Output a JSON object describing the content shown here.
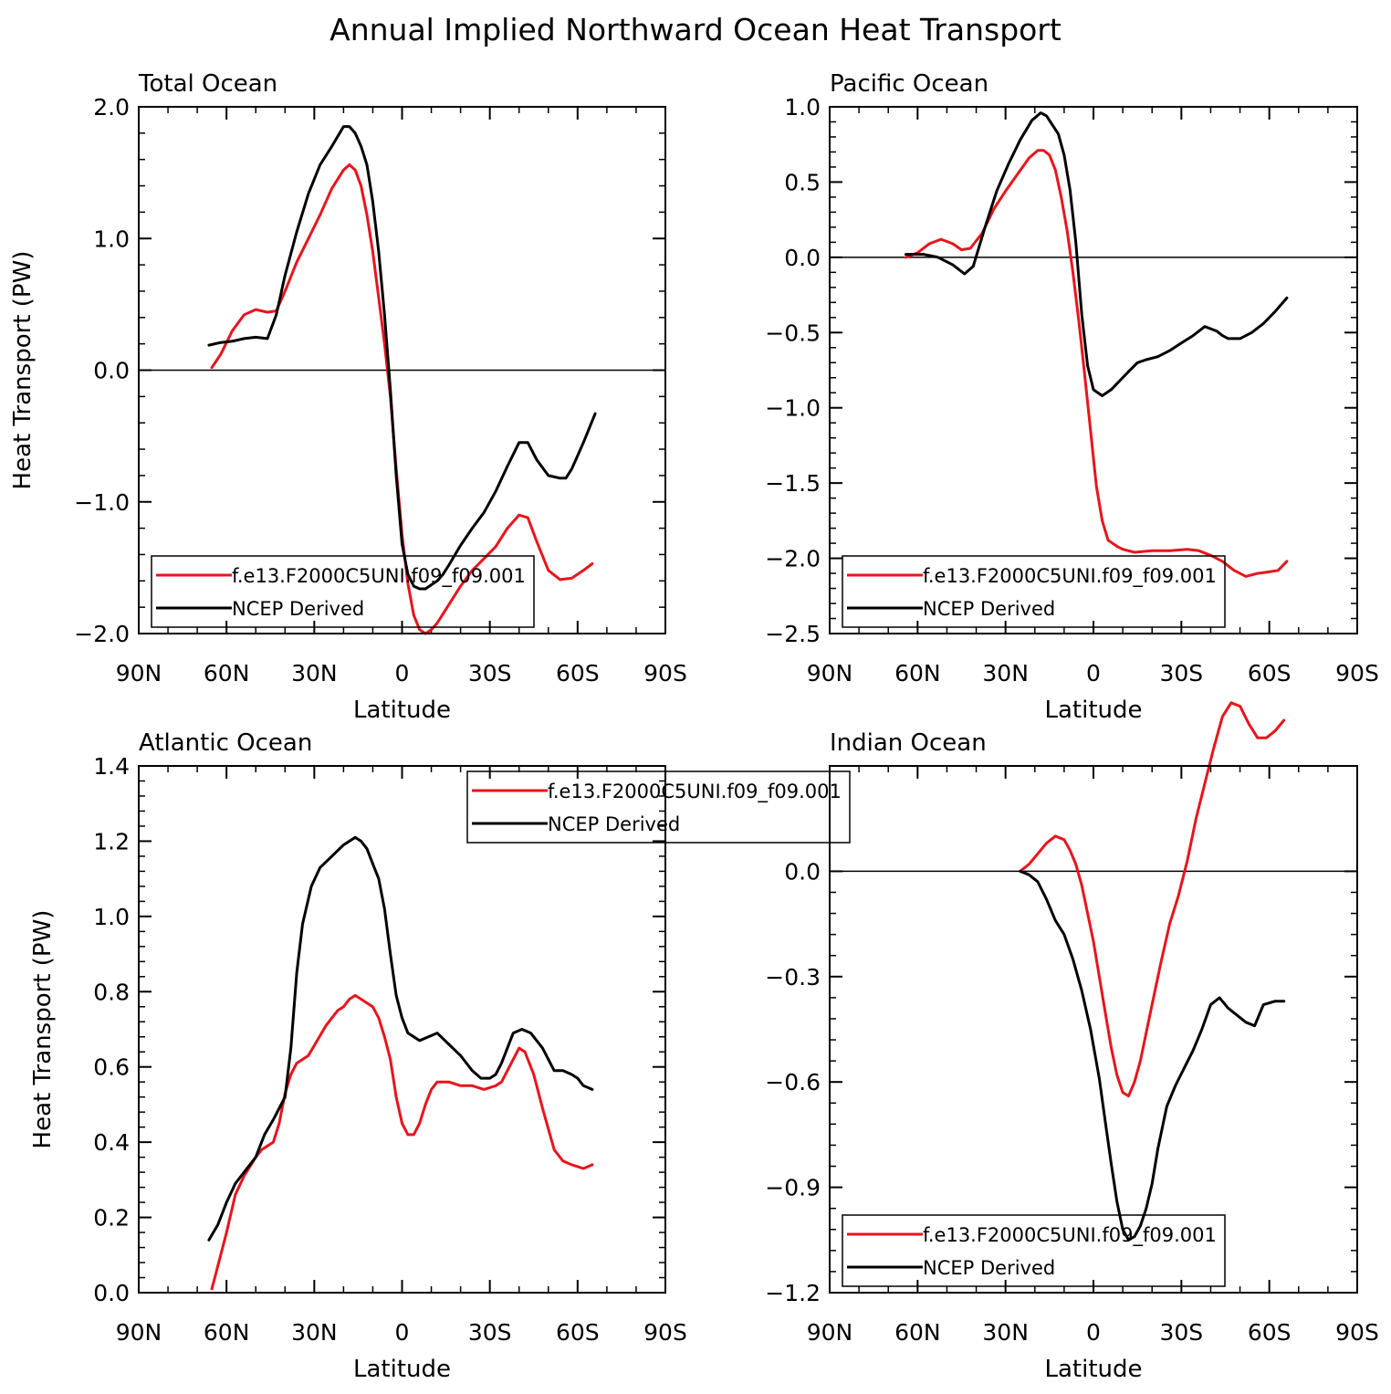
{
  "figure_title": "Annual Implied Northward Ocean Heat Transport",
  "colors": {
    "model": "#e8141c",
    "ncep": "#000000"
  },
  "chart_data": [
    {
      "type": "line",
      "title": "Total Ocean",
      "xlabel": "Latitude",
      "ylabel": "Heat Transport (PW)",
      "xlim": [
        90,
        -90
      ],
      "ylim": [
        -2.0,
        2.0
      ],
      "xticks": [
        90,
        60,
        30,
        0,
        -30,
        -60,
        -90
      ],
      "xtick_labels": [
        "90N",
        "60N",
        "30N",
        "0",
        "30S",
        "60S",
        "90S"
      ],
      "yticks": [
        -2.0,
        -1.0,
        0.0,
        1.0,
        2.0
      ],
      "ytick_labels": [
        "−2.0",
        "−1.0",
        "0.0",
        "1.0",
        "2.0"
      ],
      "zero_line": true,
      "legend": "bottom-left",
      "series": [
        {
          "name": "f.e13.F2000C5UNI.f09_f09.001",
          "color": "model",
          "x": [
            65,
            62,
            58,
            54,
            50,
            46,
            43,
            40,
            36,
            32,
            28,
            24,
            20,
            18,
            16,
            14,
            12,
            10,
            8,
            6,
            4,
            2,
            0,
            -2,
            -4,
            -6,
            -8,
            -10,
            -12,
            -14,
            -16,
            -20,
            -24,
            -28,
            -32,
            -36,
            -40,
            -43,
            -46,
            -50,
            -54,
            -58,
            -62,
            -65
          ],
          "y": [
            0.02,
            0.12,
            0.3,
            0.42,
            0.46,
            0.44,
            0.45,
            0.6,
            0.82,
            1.0,
            1.18,
            1.38,
            1.52,
            1.56,
            1.52,
            1.4,
            1.18,
            0.9,
            0.55,
            0.2,
            -0.2,
            -0.75,
            -1.25,
            -1.62,
            -1.86,
            -1.97,
            -2.0,
            -1.97,
            -1.92,
            -1.85,
            -1.78,
            -1.64,
            -1.52,
            -1.43,
            -1.34,
            -1.2,
            -1.1,
            -1.12,
            -1.3,
            -1.52,
            -1.59,
            -1.58,
            -1.52,
            -1.47
          ]
        },
        {
          "name": "NCEP Derived",
          "color": "ncep",
          "x": [
            66,
            62,
            58,
            54,
            50,
            46,
            43,
            40,
            36,
            32,
            28,
            24,
            20,
            18,
            16,
            14,
            12,
            10,
            8,
            6,
            4,
            2,
            0,
            -2,
            -4,
            -6,
            -8,
            -10,
            -12,
            -14,
            -16,
            -20,
            -24,
            -28,
            -32,
            -36,
            -40,
            -43,
            -46,
            -50,
            -54,
            -56,
            -58,
            -62,
            -66
          ],
          "y": [
            0.19,
            0.21,
            0.22,
            0.24,
            0.25,
            0.24,
            0.42,
            0.72,
            1.05,
            1.34,
            1.56,
            1.7,
            1.85,
            1.85,
            1.8,
            1.7,
            1.56,
            1.28,
            0.9,
            0.42,
            -0.15,
            -0.8,
            -1.32,
            -1.55,
            -1.64,
            -1.66,
            -1.66,
            -1.63,
            -1.6,
            -1.55,
            -1.48,
            -1.33,
            -1.2,
            -1.08,
            -0.92,
            -0.73,
            -0.55,
            -0.55,
            -0.68,
            -0.8,
            -0.82,
            -0.82,
            -0.75,
            -0.55,
            -0.33
          ]
        }
      ]
    },
    {
      "type": "line",
      "title": "Pacific Ocean",
      "xlabel": "Latitude",
      "ylabel": "",
      "xlim": [
        90,
        -90
      ],
      "ylim": [
        -2.5,
        1.0
      ],
      "xticks": [
        90,
        60,
        30,
        0,
        -30,
        -60,
        -90
      ],
      "xtick_labels": [
        "90N",
        "60N",
        "30N",
        "0",
        "30S",
        "60S",
        "90S"
      ],
      "yticks": [
        -2.5,
        -2.0,
        -1.5,
        -1.0,
        -0.5,
        0.0,
        0.5,
        1.0
      ],
      "ytick_labels": [
        "−2.5",
        "−2.0",
        "−1.5",
        "−1.0",
        "−0.5",
        "0.0",
        "0.5",
        "1.0"
      ],
      "zero_line": true,
      "legend": "bottom-left",
      "series": [
        {
          "name": "f.e13.F2000C5UNI.f09_f09.001",
          "color": "model",
          "x": [
            64,
            60,
            56,
            52,
            48,
            45,
            42,
            38,
            34,
            30,
            26,
            22,
            19,
            17,
            15,
            13,
            11,
            9,
            7,
            5,
            3,
            1,
            -1,
            -3,
            -5,
            -8,
            -10,
            -14,
            -20,
            -26,
            -32,
            -36,
            -40,
            -44,
            -48,
            -52,
            -56,
            -60,
            -63,
            -66
          ],
          "y": [
            0.0,
            0.03,
            0.09,
            0.12,
            0.09,
            0.05,
            0.06,
            0.16,
            0.32,
            0.44,
            0.55,
            0.66,
            0.71,
            0.71,
            0.68,
            0.58,
            0.4,
            0.18,
            -0.1,
            -0.42,
            -0.78,
            -1.15,
            -1.52,
            -1.75,
            -1.88,
            -1.92,
            -1.94,
            -1.96,
            -1.95,
            -1.95,
            -1.94,
            -1.95,
            -1.98,
            -2.02,
            -2.08,
            -2.12,
            -2.1,
            -2.09,
            -2.08,
            -2.02
          ]
        },
        {
          "name": "NCEP Derived",
          "color": "ncep",
          "x": [
            64,
            58,
            53,
            48,
            44,
            41,
            37,
            33,
            29,
            25,
            21,
            18,
            16,
            14,
            12,
            10,
            8,
            6,
            4,
            2,
            0,
            -3,
            -6,
            -9,
            -12,
            -15,
            -18,
            -22,
            -26,
            -30,
            -34,
            -38,
            -42,
            -44,
            -46,
            -50,
            -54,
            -58,
            -62,
            -66
          ],
          "y": [
            0.02,
            0.02,
            0.0,
            -0.05,
            -0.11,
            -0.06,
            0.2,
            0.44,
            0.62,
            0.78,
            0.91,
            0.96,
            0.94,
            0.88,
            0.82,
            0.68,
            0.45,
            0.1,
            -0.38,
            -0.72,
            -0.88,
            -0.92,
            -0.88,
            -0.82,
            -0.76,
            -0.7,
            -0.68,
            -0.66,
            -0.62,
            -0.57,
            -0.52,
            -0.46,
            -0.49,
            -0.52,
            -0.54,
            -0.54,
            -0.5,
            -0.44,
            -0.36,
            -0.27
          ]
        }
      ]
    },
    {
      "type": "line",
      "title": "Atlantic Ocean",
      "xlabel": "Latitude",
      "ylabel": "Heat Transport (PW)",
      "xlim": [
        90,
        -90
      ],
      "ylim": [
        0.0,
        1.4
      ],
      "xticks": [
        90,
        60,
        30,
        0,
        -30,
        -60,
        -90
      ],
      "xtick_labels": [
        "90N",
        "60N",
        "30N",
        "0",
        "30S",
        "60S",
        "90S"
      ],
      "yticks": [
        0.0,
        0.2,
        0.4,
        0.6,
        0.8,
        1.0,
        1.2,
        1.4
      ],
      "ytick_labels": [
        "0.0",
        "0.2",
        "0.4",
        "0.6",
        "0.8",
        "1.0",
        "1.2",
        "1.4"
      ],
      "zero_line": false,
      "legend": "top-right",
      "series": [
        {
          "name": "f.e13.F2000C5UNI.f09_f09.001",
          "color": "model",
          "x": [
            65,
            62,
            60,
            57,
            54,
            50,
            48,
            46,
            44,
            42,
            40,
            38,
            36,
            34,
            32,
            29,
            26,
            24,
            22,
            20,
            18,
            16,
            14,
            12,
            10,
            8,
            6,
            4,
            2,
            0,
            -2,
            -4,
            -6,
            -8,
            -10,
            -12,
            -14,
            -16,
            -20,
            -24,
            -28,
            -32,
            -34,
            -36,
            -38,
            -40,
            -42,
            -45,
            -48,
            -52,
            -55,
            -58,
            -62,
            -65
          ],
          "y": [
            0.01,
            0.1,
            0.16,
            0.26,
            0.31,
            0.36,
            0.38,
            0.39,
            0.4,
            0.45,
            0.53,
            0.58,
            0.61,
            0.62,
            0.63,
            0.67,
            0.71,
            0.73,
            0.75,
            0.76,
            0.78,
            0.79,
            0.78,
            0.77,
            0.76,
            0.73,
            0.68,
            0.62,
            0.52,
            0.45,
            0.42,
            0.42,
            0.45,
            0.5,
            0.54,
            0.56,
            0.56,
            0.56,
            0.55,
            0.55,
            0.54,
            0.55,
            0.56,
            0.59,
            0.62,
            0.65,
            0.64,
            0.58,
            0.49,
            0.38,
            0.35,
            0.34,
            0.33,
            0.34
          ]
        },
        {
          "name": "NCEP Derived",
          "color": "ncep",
          "x": [
            66,
            63,
            60,
            57,
            54,
            50,
            47,
            44,
            42,
            40,
            38,
            36,
            34,
            31,
            28,
            24,
            20,
            18,
            16,
            14,
            12,
            10,
            8,
            6,
            4,
            2,
            0,
            -2,
            -4,
            -6,
            -9,
            -12,
            -16,
            -20,
            -24,
            -27,
            -30,
            -32,
            -34,
            -36,
            -38,
            -41,
            -44,
            -48,
            -52,
            -55,
            -58,
            -60,
            -62,
            -65
          ],
          "y": [
            0.14,
            0.18,
            0.24,
            0.29,
            0.32,
            0.36,
            0.42,
            0.46,
            0.49,
            0.52,
            0.65,
            0.85,
            0.98,
            1.08,
            1.13,
            1.16,
            1.19,
            1.2,
            1.21,
            1.2,
            1.18,
            1.14,
            1.1,
            1.02,
            0.9,
            0.79,
            0.73,
            0.69,
            0.68,
            0.67,
            0.68,
            0.69,
            0.66,
            0.63,
            0.59,
            0.57,
            0.57,
            0.58,
            0.61,
            0.65,
            0.69,
            0.7,
            0.69,
            0.65,
            0.59,
            0.59,
            0.58,
            0.57,
            0.55,
            0.54
          ]
        }
      ]
    },
    {
      "type": "line",
      "title": "Indian Ocean",
      "xlabel": "Latitude",
      "ylabel": "",
      "xlim": [
        90,
        -90
      ],
      "ylim": [
        -1.2,
        0.3
      ],
      "xticks": [
        90,
        60,
        30,
        0,
        -30,
        -60,
        -90
      ],
      "xtick_labels": [
        "90N",
        "60N",
        "30N",
        "0",
        "30S",
        "60S",
        "90S"
      ],
      "yticks": [
        -1.2,
        -0.9,
        -0.6,
        -0.3,
        0.0
      ],
      "ytick_labels": [
        "−1.2",
        "−0.9",
        "−0.6",
        "−0.3",
        "0.0"
      ],
      "zero_line": true,
      "legend": "bottom-left",
      "series": [
        {
          "name": "f.e13.F2000C5UNI.f09_f09.001",
          "color": "model",
          "x": [
            25,
            22,
            19,
            16,
            13,
            10,
            8,
            6,
            4,
            2,
            0,
            -2,
            -4,
            -6,
            -8,
            -10,
            -12,
            -14,
            -16,
            -18,
            -20,
            -23,
            -26,
            -29,
            -32,
            -35,
            -38,
            -41,
            -44,
            -47,
            -50,
            -53,
            -56,
            -59,
            -62,
            -65
          ],
          "y": [
            0.0,
            0.02,
            0.05,
            0.08,
            0.1,
            0.09,
            0.06,
            0.02,
            -0.04,
            -0.12,
            -0.2,
            -0.3,
            -0.4,
            -0.5,
            -0.58,
            -0.63,
            -0.64,
            -0.6,
            -0.54,
            -0.46,
            -0.38,
            -0.26,
            -0.15,
            -0.07,
            0.03,
            0.15,
            0.25,
            0.35,
            0.44,
            0.48,
            0.47,
            0.42,
            0.38,
            0.38,
            0.4,
            0.43
          ]
        },
        {
          "name": "NCEP Derived",
          "color": "ncep",
          "x": [
            25,
            22,
            19,
            16,
            13,
            10,
            7,
            4,
            1,
            -2,
            -4,
            -6,
            -8,
            -10,
            -12,
            -14,
            -16,
            -18,
            -20,
            -22,
            -25,
            -28,
            -31,
            -34,
            -37,
            -40,
            -43,
            -46,
            -49,
            -52,
            -55,
            -58,
            -62,
            -65
          ],
          "y": [
            0.0,
            -0.01,
            -0.03,
            -0.08,
            -0.14,
            -0.18,
            -0.25,
            -0.34,
            -0.45,
            -0.59,
            -0.71,
            -0.83,
            -0.94,
            -1.02,
            -1.05,
            -1.04,
            -1.01,
            -0.96,
            -0.89,
            -0.79,
            -0.67,
            -0.61,
            -0.56,
            -0.51,
            -0.45,
            -0.38,
            -0.36,
            -0.39,
            -0.41,
            -0.43,
            -0.44,
            -0.38,
            -0.37,
            -0.37
          ]
        }
      ]
    }
  ]
}
